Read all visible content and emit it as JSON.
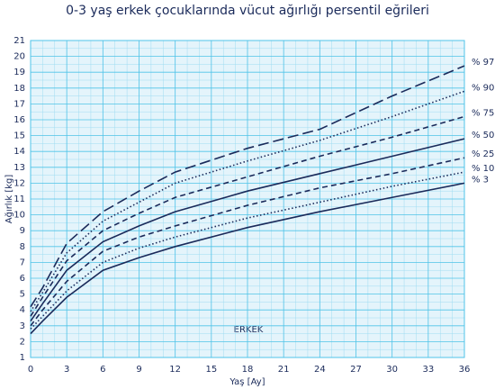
{
  "chart_data": {
    "type": "line",
    "title": "0-3 yaş erkek çocuklarında vücut ağırlığı persentil eğrileri",
    "x_label": "Yaş [Ay]",
    "y_label": "Ağırlık [kg]",
    "annotation": "ERKEK",
    "x": [
      0,
      1,
      3,
      6,
      9,
      12,
      18,
      24,
      30,
      36
    ],
    "xlim": [
      0,
      36
    ],
    "xticks": [
      0,
      3,
      6,
      9,
      12,
      15,
      18,
      21,
      24,
      27,
      30,
      33,
      36
    ],
    "ylim": [
      1,
      21
    ],
    "yticks": [
      1,
      2,
      3,
      4,
      5,
      6,
      7,
      8,
      9,
      10,
      11,
      12,
      13,
      14,
      15,
      16,
      17,
      18,
      19,
      20,
      21
    ],
    "grid": true,
    "series": [
      {
        "name": "% 97",
        "color": "#1a2a5a",
        "dash": "long",
        "values": [
          4.2,
          5.4,
          8.2,
          10.2,
          11.5,
          12.7,
          14.2,
          15.4,
          17.5,
          19.4
        ]
      },
      {
        "name": "% 90",
        "color": "#1a2a5a",
        "dash": "dot",
        "values": [
          3.9,
          5.1,
          7.6,
          9.6,
          10.8,
          12.0,
          13.4,
          14.7,
          16.2,
          17.8
        ]
      },
      {
        "name": "% 75",
        "color": "#1a2a5a",
        "dash": "dash",
        "values": [
          3.6,
          4.8,
          7.1,
          9.0,
          10.1,
          11.1,
          12.4,
          13.7,
          14.9,
          16.2
        ]
      },
      {
        "name": "% 50",
        "color": "#1a2a5a",
        "dash": "solid",
        "values": [
          3.3,
          4.4,
          6.5,
          8.3,
          9.3,
          10.2,
          11.5,
          12.6,
          13.7,
          14.8
        ]
      },
      {
        "name": "% 25",
        "color": "#1a2a5a",
        "dash": "dash",
        "values": [
          3.0,
          4.0,
          5.8,
          7.7,
          8.6,
          9.3,
          10.6,
          11.7,
          12.6,
          13.6
        ]
      },
      {
        "name": "% 10",
        "color": "#1a2a5a",
        "dash": "dot",
        "values": [
          2.8,
          3.6,
          5.2,
          7.0,
          7.9,
          8.6,
          9.8,
          10.8,
          11.8,
          12.7
        ]
      },
      {
        "name": "% 3",
        "color": "#1a2a5a",
        "dash": "solid",
        "values": [
          2.5,
          3.3,
          4.8,
          6.5,
          7.3,
          8.0,
          9.2,
          10.2,
          11.1,
          12.0
        ]
      }
    ]
  }
}
